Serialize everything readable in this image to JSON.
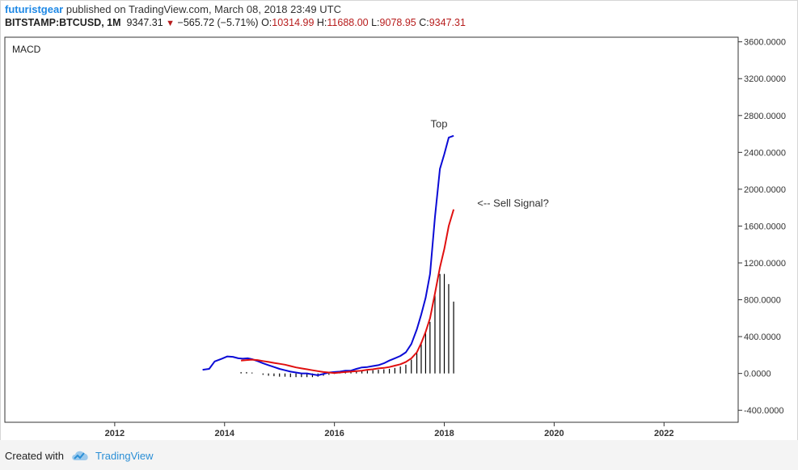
{
  "header": {
    "author": "futuristgear",
    "published_text": " published on TradingView.com, March 08, 2018 23:49 UTC",
    "symbol": "BITSTAMP:BTCUSD, 1M",
    "last": "9347.31",
    "change": "−565.72 (−5.71%)",
    "open_label": "O:",
    "open": "10314.99",
    "high_label": "H:",
    "high": "11688.00",
    "low_label": "L:",
    "low": "9078.95",
    "close_label": "C:",
    "close": "9347.31"
  },
  "footer": {
    "created_with": "Created with",
    "brand": "TradingView"
  },
  "colors": {
    "macd": "#0b0bd6",
    "signal": "#e01010",
    "histogram": "#000000",
    "brand": "#2b8fd6"
  },
  "chart_data": {
    "type": "line",
    "title": "MACD",
    "xlabel": "",
    "ylabel": "",
    "x_ticks": [
      "2012",
      "2014",
      "2016",
      "2018",
      "2020",
      "2022"
    ],
    "y_ticks": [
      "3600.0000",
      "3200.0000",
      "2800.0000",
      "2400.0000",
      "2000.0000",
      "1600.0000",
      "1200.0000",
      "800.0000",
      "400.0000",
      "0.0000",
      "-400.0000"
    ],
    "xlim": [
      2010.0,
      2023.35
    ],
    "ylim": [
      -530,
      3650
    ],
    "grid": false,
    "series": [
      {
        "type": "line",
        "x": [
          2013.6,
          2013.72,
          2013.82,
          2013.95,
          2014.05,
          2014.15,
          2014.25,
          2014.33,
          2014.42,
          2014.5,
          2014.6,
          2014.7,
          2014.8,
          2014.9,
          2015.0,
          2015.1,
          2015.2,
          2015.3,
          2015.4,
          2015.5,
          2015.6,
          2015.7,
          2015.8,
          2015.9,
          2016.0,
          2016.1,
          2016.2,
          2016.3,
          2016.4,
          2016.5,
          2016.6,
          2016.7,
          2016.8,
          2016.9,
          2017.0,
          2017.1,
          2017.2,
          2017.3,
          2017.4,
          2017.5,
          2017.58,
          2017.66,
          2017.74,
          2017.83,
          2017.92,
          2018.0,
          2018.08,
          2018.17
        ],
        "values": [
          40,
          50,
          130,
          160,
          185,
          180,
          165,
          160,
          165,
          155,
          135,
          110,
          90,
          70,
          50,
          35,
          20,
          10,
          0,
          0,
          -10,
          -20,
          -5,
          10,
          15,
          20,
          30,
          30,
          50,
          65,
          70,
          80,
          90,
          110,
          140,
          165,
          190,
          230,
          320,
          480,
          640,
          820,
          1080,
          1700,
          2220,
          2380,
          2560,
          2580
        ]
      },
      {
        "type": "line",
        "x": [
          2014.3,
          2014.4,
          2014.5,
          2014.6,
          2014.7,
          2014.8,
          2014.9,
          2015.0,
          2015.1,
          2015.2,
          2015.3,
          2015.4,
          2015.5,
          2015.6,
          2015.7,
          2015.8,
          2015.9,
          2016.0,
          2016.1,
          2016.2,
          2016.3,
          2016.4,
          2016.5,
          2016.6,
          2016.7,
          2016.8,
          2016.9,
          2017.0,
          2017.1,
          2017.2,
          2017.3,
          2017.4,
          2017.5,
          2017.58,
          2017.66,
          2017.74,
          2017.83,
          2017.92,
          2018.0,
          2018.08,
          2018.17
        ],
        "values": [
          140,
          145,
          150,
          145,
          135,
          125,
          115,
          105,
          95,
          80,
          65,
          55,
          45,
          35,
          25,
          15,
          10,
          5,
          10,
          15,
          20,
          25,
          30,
          40,
          45,
          55,
          60,
          70,
          85,
          100,
          125,
          165,
          230,
          330,
          450,
          600,
          870,
          1150,
          1350,
          1600,
          1780
        ]
      },
      {
        "type": "bar",
        "x": [
          2014.3,
          2014.4,
          2014.5,
          2014.7,
          2014.8,
          2014.9,
          2015.0,
          2015.1,
          2015.2,
          2015.3,
          2015.4,
          2015.5,
          2015.6,
          2015.7,
          2015.8,
          2015.9,
          2016.0,
          2016.1,
          2016.2,
          2016.3,
          2016.4,
          2016.5,
          2016.6,
          2016.7,
          2016.8,
          2016.9,
          2017.0,
          2017.1,
          2017.2,
          2017.3,
          2017.4,
          2017.5,
          2017.58,
          2017.66,
          2017.74,
          2017.83,
          2017.92,
          2018.0,
          2018.08,
          2018.17
        ],
        "values": [
          15,
          15,
          10,
          -15,
          -25,
          -30,
          -35,
          -35,
          -40,
          -40,
          -40,
          -40,
          -40,
          -35,
          -25,
          -15,
          -5,
          5,
          10,
          15,
          20,
          25,
          30,
          35,
          40,
          45,
          50,
          60,
          75,
          95,
          150,
          230,
          340,
          440,
          560,
          850,
          1080,
          1080,
          970,
          780
        ]
      }
    ],
    "annotations": [
      {
        "text": "Top",
        "x": 2017.75,
        "y": 2670
      },
      {
        "text": "<-- Sell Signal?",
        "x": 2018.6,
        "y": 1810
      }
    ]
  }
}
